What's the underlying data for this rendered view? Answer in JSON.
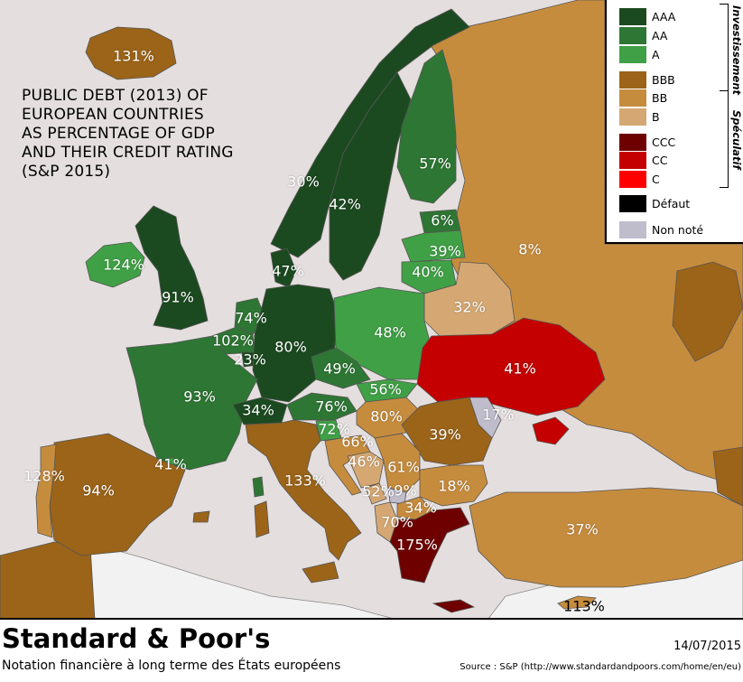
{
  "map": {
    "title": "PUBLIC DEBT (2013) OF\nEUROPEAN COUNTRIES\nAS PERCENTAGE OF GDP\nAND THEIR CREDIT RATING\n(S&P 2015)"
  },
  "legend": {
    "groups": {
      "investment": "Investissement",
      "speculative": "Spéculatif"
    },
    "items": [
      {
        "label": "AAA",
        "color": "#1c4a20"
      },
      {
        "label": "AA",
        "color": "#2e7634"
      },
      {
        "label": "A",
        "color": "#40a046"
      },
      {
        "label": "BBB",
        "color": "#9b6419"
      },
      {
        "label": "BB",
        "color": "#c68c3e"
      },
      {
        "label": "B",
        "color": "#d5a873"
      },
      {
        "label": "CCC",
        "color": "#6e0000"
      },
      {
        "label": "CC",
        "color": "#c40000"
      },
      {
        "label": "C",
        "color": "#ff0000"
      },
      {
        "label": "Défaut",
        "color": "#000000"
      },
      {
        "label": "Non noté",
        "color": "#bfbccc"
      }
    ]
  },
  "countries": [
    {
      "name": "Iceland",
      "debt": "131%",
      "rating": "BBB"
    },
    {
      "name": "Norway",
      "debt": "30%",
      "rating": "AAA"
    },
    {
      "name": "Sweden",
      "debt": "42%",
      "rating": "AAA"
    },
    {
      "name": "Finland",
      "debt": "57%",
      "rating": "AA"
    },
    {
      "name": "Estonia",
      "debt": "6%",
      "rating": "AA"
    },
    {
      "name": "Latvia",
      "debt": "39%",
      "rating": "A"
    },
    {
      "name": "Lithuania",
      "debt": "40%",
      "rating": "A"
    },
    {
      "name": "Russia",
      "debt": "8%",
      "rating": "BB"
    },
    {
      "name": "Ireland",
      "debt": "124%",
      "rating": "A"
    },
    {
      "name": "United Kingdom",
      "debt": "91%",
      "rating": "AAA"
    },
    {
      "name": "Denmark",
      "debt": "47%",
      "rating": "AAA"
    },
    {
      "name": "Belarus",
      "debt": "32%",
      "rating": "B"
    },
    {
      "name": "Netherlands",
      "debt": "74%",
      "rating": "AA"
    },
    {
      "name": "Belgium",
      "debt": "102%",
      "rating": "AA"
    },
    {
      "name": "Luxembourg",
      "debt": "23%",
      "rating": "AAA"
    },
    {
      "name": "Germany",
      "debt": "80%",
      "rating": "AAA"
    },
    {
      "name": "Poland",
      "debt": "48%",
      "rating": "A"
    },
    {
      "name": "Ukraine",
      "debt": "41%",
      "rating": "CC"
    },
    {
      "name": "France",
      "debt": "93%",
      "rating": "AA"
    },
    {
      "name": "Czech Republic",
      "debt": "49%",
      "rating": "AA"
    },
    {
      "name": "Slovakia",
      "debt": "56%",
      "rating": "A"
    },
    {
      "name": "Switzerland",
      "debt": "34%",
      "rating": "AAA"
    },
    {
      "name": "Austria",
      "debt": "76%",
      "rating": "AA"
    },
    {
      "name": "Hungary",
      "debt": "80%",
      "rating": "BB"
    },
    {
      "name": "Moldova",
      "debt": "17%",
      "rating": "Non noté"
    },
    {
      "name": "Slovenia",
      "debt": "72%",
      "rating": "A"
    },
    {
      "name": "Croatia",
      "debt": "66%",
      "rating": "BB"
    },
    {
      "name": "Romania",
      "debt": "39%",
      "rating": "BBB"
    },
    {
      "name": "Portugal (Azores)",
      "debt": "128%",
      "rating": "BB"
    },
    {
      "name": "Spain",
      "debt": "94%",
      "rating": "BBB"
    },
    {
      "name": "Andorra",
      "debt": "41%",
      "rating": "A"
    },
    {
      "name": "Bosnia and Herzegovina",
      "debt": "46%",
      "rating": "B"
    },
    {
      "name": "Serbia",
      "debt": "61%",
      "rating": "BB"
    },
    {
      "name": "Italy",
      "debt": "133%",
      "rating": "BBB"
    },
    {
      "name": "Montenegro",
      "debt": "52%",
      "rating": "B"
    },
    {
      "name": "Kosovo",
      "debt": "9%",
      "rating": "Non noté"
    },
    {
      "name": "Bulgaria",
      "debt": "18%",
      "rating": "BB"
    },
    {
      "name": "Macedonia",
      "debt": "34%",
      "rating": "BB"
    },
    {
      "name": "Albania",
      "debt": "70%",
      "rating": "B"
    },
    {
      "name": "Greece",
      "debt": "175%",
      "rating": "CCC"
    },
    {
      "name": "Turkey",
      "debt": "37%",
      "rating": "BB"
    },
    {
      "name": "Cyprus",
      "debt": "113%",
      "rating": "BB"
    }
  ],
  "footer": {
    "title": "Standard & Poor's",
    "subtitle": "Notation financière à long terme des États européens",
    "date": "14/07/2015",
    "source": "Source : S&P (http://www.standardandpoors.com/home/en/eu)"
  }
}
